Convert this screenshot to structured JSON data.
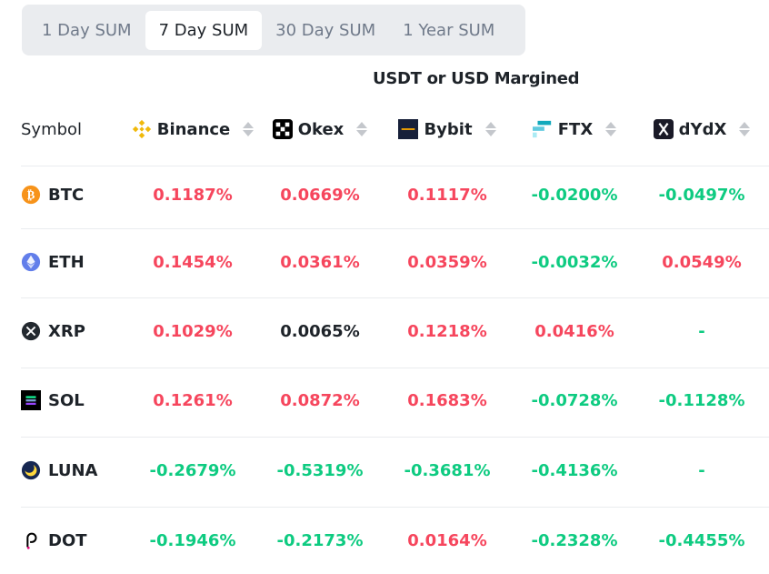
{
  "tabs": [
    "1 Day SUM",
    "7 Day SUM",
    "30 Day SUM",
    "1 Year SUM"
  ],
  "active_tab": 1,
  "margin_title": "USDT or USD Margined",
  "headers": {
    "symbol": "Symbol",
    "exchanges": [
      "Binance",
      "Okex",
      "Bybit",
      "FTX",
      "dYdX"
    ]
  },
  "colors": {
    "positive": "#f6465d",
    "negative": "#0ecb81",
    "neutral": "#1e2329"
  },
  "rows": [
    {
      "symbol": "BTC",
      "values": [
        "0.1187%",
        "0.0669%",
        "0.1117%",
        "-0.0200%",
        "-0.0497%"
      ]
    },
    {
      "symbol": "ETH",
      "values": [
        "0.1454%",
        "0.0361%",
        "0.0359%",
        "-0.0032%",
        "0.0549%"
      ]
    },
    {
      "symbol": "XRP",
      "values": [
        "0.1029%",
        "0.0065%",
        "0.1218%",
        "0.0416%",
        "-"
      ]
    },
    {
      "symbol": "SOL",
      "values": [
        "0.1261%",
        "0.0872%",
        "0.1683%",
        "-0.0728%",
        "-0.1128%"
      ]
    },
    {
      "symbol": "LUNA",
      "values": [
        "-0.2679%",
        "-0.5319%",
        "-0.3681%",
        "-0.4136%",
        "-"
      ]
    },
    {
      "symbol": "DOT",
      "values": [
        "-0.1946%",
        "-0.2173%",
        "0.0164%",
        "-0.2328%",
        "-0.4455%"
      ]
    }
  ]
}
